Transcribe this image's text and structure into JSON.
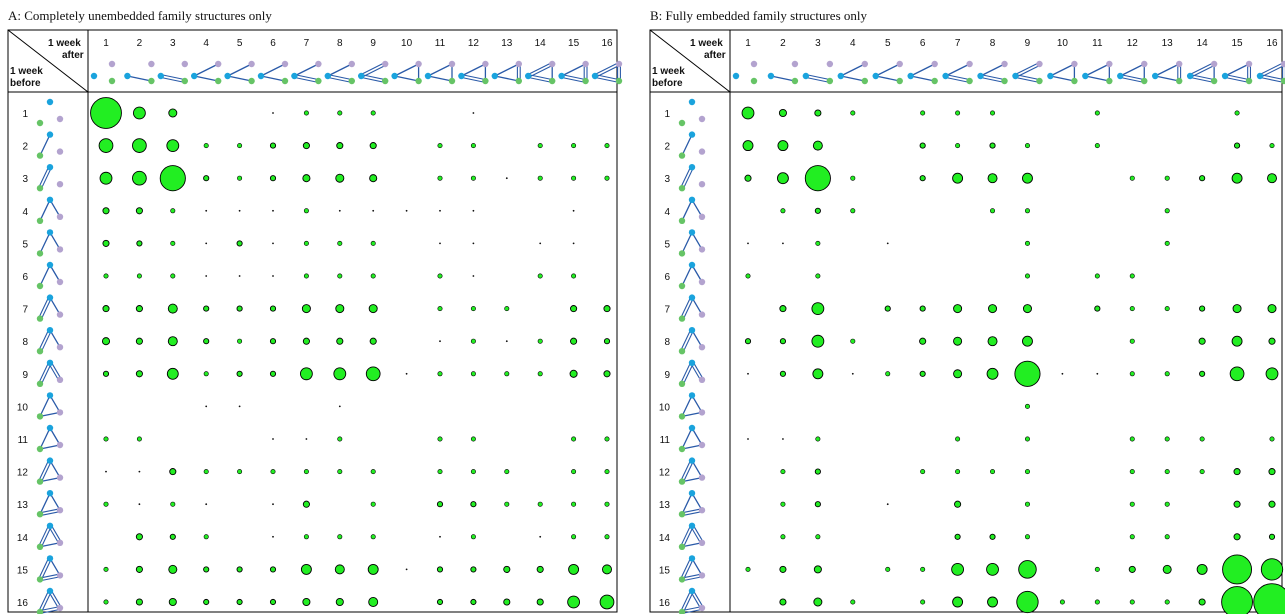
{
  "colors": {
    "node_top": "#1aa3dd",
    "node_mid": "#b3a3cf",
    "node_bot": "#66c466",
    "edge": "#2a5aa8",
    "bubble": "#22ee22",
    "bubble_stroke": "#000000"
  },
  "header": {
    "col_label_a": "1 week",
    "col_label_b": "after",
    "row_label_a": "1 week",
    "row_label_b": "before"
  },
  "labels": [
    "1",
    "2",
    "3",
    "4",
    "5",
    "6",
    "7",
    "8",
    "9",
    "10",
    "11",
    "12",
    "13",
    "14",
    "15",
    "16"
  ],
  "chart_data": [
    {
      "type": "heatmap",
      "title": "A: Completely unembedded family structures only",
      "x_categories": [
        "1",
        "2",
        "3",
        "4",
        "5",
        "6",
        "7",
        "8",
        "9",
        "10",
        "11",
        "12",
        "13",
        "14",
        "15",
        "16"
      ],
      "y_categories": [
        "1",
        "2",
        "3",
        "4",
        "5",
        "6",
        "7",
        "8",
        "9",
        "10",
        "11",
        "12",
        "13",
        "14",
        "15",
        "16"
      ],
      "x_axis_label": "1 week after",
      "y_axis_label": "1 week before",
      "values": [
        [
          15,
          5,
          3,
          0,
          0,
          0.5,
          1,
          1,
          1,
          0,
          0,
          0.5,
          0,
          0,
          0,
          0
        ],
        [
          6,
          6,
          5,
          1,
          1,
          1.5,
          2,
          2,
          2,
          0,
          1,
          1,
          0,
          1,
          1,
          1
        ],
        [
          5,
          6,
          12,
          1.5,
          1,
          1.5,
          2.5,
          3,
          2.5,
          0,
          1,
          1,
          0.5,
          1,
          1,
          1
        ],
        [
          2,
          2,
          1,
          0.5,
          0.5,
          0.5,
          1,
          0.5,
          0.5,
          0.5,
          0.5,
          0.5,
          0,
          0,
          0.5,
          0
        ],
        [
          2,
          1.5,
          1,
          0.5,
          1.5,
          0.5,
          1,
          1,
          1,
          0,
          0.5,
          0.5,
          0,
          0.5,
          0.5,
          0
        ],
        [
          1,
          1,
          1,
          0.5,
          0.5,
          0.5,
          1,
          1,
          1,
          0,
          1,
          0.5,
          0,
          1,
          1,
          0
        ],
        [
          2,
          2,
          3.5,
          1.5,
          1.5,
          1.5,
          3,
          3,
          3,
          0,
          1,
          1,
          1,
          0,
          2,
          2
        ],
        [
          2.5,
          2,
          3.5,
          1.5,
          1,
          1.5,
          2,
          2,
          2,
          0,
          0.5,
          1,
          0.5,
          1,
          2,
          1.5
        ],
        [
          1.5,
          2,
          4.5,
          1,
          1.5,
          1.5,
          5,
          5,
          6,
          0.5,
          1,
          1,
          1,
          1,
          2.5,
          2
        ],
        [
          0,
          0,
          0,
          0.5,
          0.5,
          0,
          0,
          0.5,
          0,
          0,
          0,
          0,
          0,
          0,
          0,
          0
        ],
        [
          1,
          1,
          0,
          0,
          0,
          0.5,
          0.5,
          1,
          0,
          0,
          1,
          1,
          0,
          0,
          1,
          1
        ],
        [
          0.5,
          0.5,
          2,
          1,
          1,
          1,
          1,
          1,
          1,
          0,
          1,
          1,
          1,
          0,
          1,
          1
        ],
        [
          1,
          0.5,
          1,
          0.5,
          0,
          0.5,
          2,
          0,
          1,
          0,
          1.5,
          1.5,
          1,
          1,
          1,
          1
        ],
        [
          0,
          2,
          1.5,
          1,
          0,
          0.5,
          1,
          1,
          1,
          0,
          0.5,
          1,
          0,
          0.5,
          1,
          1
        ],
        [
          1,
          2,
          3,
          1.5,
          1.5,
          1.5,
          4,
          3.5,
          4,
          0.5,
          1.5,
          1.5,
          2,
          2,
          4,
          3.5
        ],
        [
          1,
          2,
          2.5,
          1.5,
          1.5,
          1.5,
          2.5,
          2.5,
          3.5,
          0,
          1.5,
          1.5,
          2,
          2,
          5,
          6
        ]
      ]
    },
    {
      "type": "heatmap",
      "title": "B: Fully embedded family structures only",
      "x_categories": [
        "1",
        "2",
        "3",
        "4",
        "5",
        "6",
        "7",
        "8",
        "9",
        "10",
        "11",
        "12",
        "13",
        "14",
        "15",
        "16"
      ],
      "y_categories": [
        "1",
        "2",
        "3",
        "4",
        "5",
        "6",
        "7",
        "8",
        "9",
        "10",
        "11",
        "12",
        "13",
        "14",
        "15",
        "16"
      ],
      "x_axis_label": "1 week after",
      "y_axis_label": "1 week before",
      "values": [
        [
          5,
          2.5,
          2,
          1,
          0,
          1,
          1,
          1,
          0,
          0,
          1,
          0,
          0,
          0,
          1,
          0
        ],
        [
          4,
          4,
          3.5,
          0,
          0,
          1.5,
          1,
          1.5,
          1,
          0,
          1,
          0,
          0,
          0,
          1.5,
          1
        ],
        [
          2,
          4.5,
          12,
          1,
          0,
          1.5,
          4,
          3.5,
          4,
          0,
          0,
          1,
          1,
          1.5,
          4,
          3.5
        ],
        [
          0,
          1,
          1.5,
          1,
          0,
          0,
          0,
          1,
          1,
          0,
          0,
          0,
          1,
          0,
          0,
          0
        ],
        [
          0.5,
          0.5,
          1,
          0,
          0.5,
          0,
          0,
          0,
          1,
          0,
          0,
          0,
          1,
          0,
          0,
          0
        ],
        [
          1,
          0,
          1,
          0,
          0,
          0,
          0,
          0,
          1,
          0,
          1,
          1,
          0,
          0,
          0,
          0
        ],
        [
          0,
          2,
          5,
          0,
          1.5,
          1.5,
          3,
          3,
          3,
          0,
          1.5,
          1,
          1,
          1.5,
          3,
          3
        ],
        [
          1.5,
          1.5,
          5,
          1,
          0,
          2,
          3,
          3.5,
          4,
          0,
          0,
          1,
          0,
          2,
          4,
          2
        ],
        [
          0.5,
          1.5,
          4,
          0.5,
          1,
          1.5,
          3,
          4.5,
          12,
          0.5,
          0.5,
          1,
          1,
          1.5,
          6,
          5
        ],
        [
          0,
          0,
          0,
          0,
          0,
          0,
          0,
          0,
          1,
          0,
          0,
          0,
          0,
          0,
          0,
          0
        ],
        [
          0.5,
          0.5,
          1,
          0,
          0,
          0,
          1,
          0,
          1,
          0,
          0,
          1,
          1,
          1,
          0,
          1
        ],
        [
          0,
          1,
          1.5,
          0,
          0,
          1,
          1,
          1,
          1,
          0,
          0,
          1,
          1,
          1,
          2,
          2
        ],
        [
          0,
          1,
          1.5,
          0,
          0.5,
          0,
          2,
          0,
          1,
          0,
          0,
          1,
          1,
          0,
          2,
          2
        ],
        [
          0,
          1,
          1,
          0,
          0,
          0,
          1.5,
          1.5,
          1,
          0,
          0,
          1,
          1,
          0,
          2,
          1.5
        ],
        [
          1,
          2,
          2.5,
          0,
          1,
          1,
          5,
          5,
          8,
          0,
          1,
          2,
          3,
          4,
          14,
          10
        ],
        [
          0,
          2,
          3,
          1,
          0,
          1,
          4,
          4,
          10,
          1,
          1,
          1,
          1,
          2,
          15,
          18
        ]
      ]
    }
  ]
}
